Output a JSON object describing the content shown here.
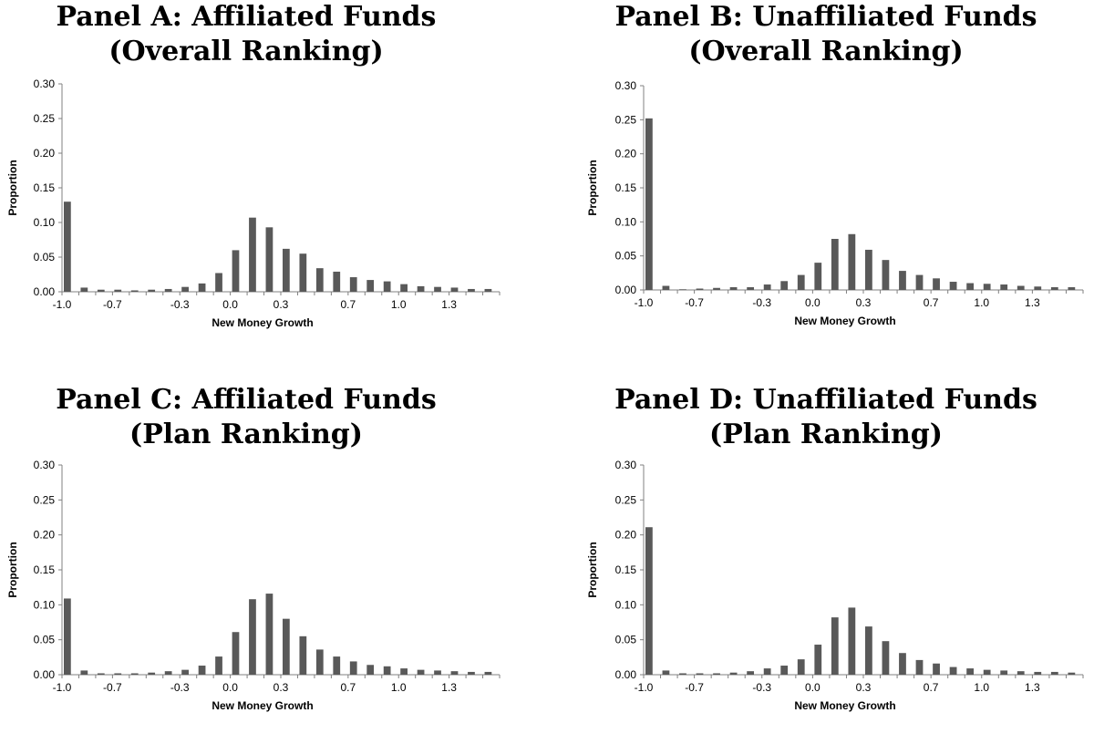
{
  "colors": {
    "bar": "#595959",
    "axis": "#808080"
  },
  "chart_data": [
    {
      "type": "bar",
      "title": "Panel A: Affiliated Funds",
      "subtitle": "(Overall Ranking)",
      "xlabel": "New Money Growth",
      "ylabel": "Proportion",
      "ylim": [
        0,
        0.3
      ],
      "yticks": [
        "0.00",
        "0.05",
        "0.10",
        "0.15",
        "0.20",
        "0.25",
        "0.30"
      ],
      "xticks": [
        {
          "x": -1.0,
          "label": "-1.0"
        },
        {
          "x": -0.7,
          "label": "-0.7"
        },
        {
          "x": -0.3,
          "label": "-0.3"
        },
        {
          "x": 0.0,
          "label": "0.0"
        },
        {
          "x": 0.3,
          "label": "0.3"
        },
        {
          "x": 0.7,
          "label": "0.7"
        },
        {
          "x": 1.0,
          "label": "1.0"
        },
        {
          "x": 1.3,
          "label": "1.3"
        }
      ],
      "xlim": [
        -1.0,
        1.6
      ],
      "x": [
        -1.0,
        -0.9,
        -0.8,
        -0.7,
        -0.6,
        -0.5,
        -0.4,
        -0.3,
        -0.2,
        -0.1,
        0.0,
        0.1,
        0.2,
        0.3,
        0.4,
        0.5,
        0.6,
        0.7,
        0.8,
        0.9,
        1.0,
        1.1,
        1.2,
        1.3,
        1.4,
        1.5
      ],
      "values": [
        0.13,
        0.006,
        0.003,
        0.003,
        0.002,
        0.003,
        0.004,
        0.007,
        0.012,
        0.027,
        0.06,
        0.107,
        0.093,
        0.062,
        0.055,
        0.034,
        0.029,
        0.021,
        0.017,
        0.015,
        0.011,
        0.008,
        0.007,
        0.006,
        0.004,
        0.004
      ]
    },
    {
      "type": "bar",
      "title": "Panel B: Unaffiliated Funds",
      "subtitle": "(Overall Ranking)",
      "xlabel": "New Money Growth",
      "ylabel": "Proportion",
      "ylim": [
        0,
        0.3
      ],
      "yticks": [
        "0.00",
        "0.05",
        "0.10",
        "0.15",
        "0.20",
        "0.25",
        "0.30"
      ],
      "xticks": [
        {
          "x": -1.0,
          "label": "-1.0"
        },
        {
          "x": -0.7,
          "label": "-0.7"
        },
        {
          "x": -0.3,
          "label": "-0.3"
        },
        {
          "x": 0.0,
          "label": "0.0"
        },
        {
          "x": 0.3,
          "label": "0.3"
        },
        {
          "x": 0.7,
          "label": "0.7"
        },
        {
          "x": 1.0,
          "label": "1.0"
        },
        {
          "x": 1.3,
          "label": "1.3"
        }
      ],
      "xlim": [
        -1.0,
        1.6
      ],
      "x": [
        -1.0,
        -0.9,
        -0.8,
        -0.7,
        -0.6,
        -0.5,
        -0.4,
        -0.3,
        -0.2,
        -0.1,
        0.0,
        0.1,
        0.2,
        0.3,
        0.4,
        0.5,
        0.6,
        0.7,
        0.8,
        0.9,
        1.0,
        1.1,
        1.2,
        1.3,
        1.4,
        1.5
      ],
      "values": [
        0.252,
        0.006,
        0.001,
        0.002,
        0.003,
        0.004,
        0.004,
        0.008,
        0.013,
        0.022,
        0.04,
        0.075,
        0.082,
        0.059,
        0.044,
        0.028,
        0.022,
        0.017,
        0.012,
        0.01,
        0.009,
        0.008,
        0.006,
        0.005,
        0.004,
        0.004
      ]
    },
    {
      "type": "bar",
      "title": "Panel C: Affiliated Funds",
      "subtitle": "(Plan Ranking)",
      "xlabel": "New Money Growth",
      "ylabel": "Proportion",
      "ylim": [
        0,
        0.3
      ],
      "yticks": [
        "0.00",
        "0.05",
        "0.10",
        "0.15",
        "0.20",
        "0.25",
        "0.30"
      ],
      "xticks": [
        {
          "x": -1.0,
          "label": "-1.0"
        },
        {
          "x": -0.7,
          "label": "-0.7"
        },
        {
          "x": -0.3,
          "label": "-0.3"
        },
        {
          "x": 0.0,
          "label": "0.0"
        },
        {
          "x": 0.3,
          "label": "0.3"
        },
        {
          "x": 0.7,
          "label": "0.7"
        },
        {
          "x": 1.0,
          "label": "1.0"
        },
        {
          "x": 1.3,
          "label": "1.3"
        }
      ],
      "xlim": [
        -1.0,
        1.6
      ],
      "x": [
        -1.0,
        -0.9,
        -0.8,
        -0.7,
        -0.6,
        -0.5,
        -0.4,
        -0.3,
        -0.2,
        -0.1,
        0.0,
        0.1,
        0.2,
        0.3,
        0.4,
        0.5,
        0.6,
        0.7,
        0.8,
        0.9,
        1.0,
        1.1,
        1.2,
        1.3,
        1.4,
        1.5
      ],
      "values": [
        0.109,
        0.006,
        0.002,
        0.002,
        0.002,
        0.003,
        0.005,
        0.007,
        0.013,
        0.026,
        0.061,
        0.108,
        0.116,
        0.08,
        0.055,
        0.036,
        0.026,
        0.019,
        0.014,
        0.012,
        0.009,
        0.007,
        0.006,
        0.005,
        0.004,
        0.004
      ]
    },
    {
      "type": "bar",
      "title": "Panel D: Unaffiliated Funds",
      "subtitle": "(Plan Ranking)",
      "xlabel": "New Money Growth",
      "ylabel": "Proportion",
      "ylim": [
        0,
        0.3
      ],
      "yticks": [
        "0.00",
        "0.05",
        "0.10",
        "0.15",
        "0.20",
        "0.25",
        "0.30"
      ],
      "xticks": [
        {
          "x": -1.0,
          "label": "-1.0"
        },
        {
          "x": -0.7,
          "label": "-0.7"
        },
        {
          "x": -0.3,
          "label": "-0.3"
        },
        {
          "x": 0.0,
          "label": "0.0"
        },
        {
          "x": 0.3,
          "label": "0.3"
        },
        {
          "x": 0.7,
          "label": "0.7"
        },
        {
          "x": 1.0,
          "label": "1.0"
        },
        {
          "x": 1.3,
          "label": "1.3"
        }
      ],
      "xlim": [
        -1.0,
        1.6
      ],
      "x": [
        -1.0,
        -0.9,
        -0.8,
        -0.7,
        -0.6,
        -0.5,
        -0.4,
        -0.3,
        -0.2,
        -0.1,
        0.0,
        0.1,
        0.2,
        0.3,
        0.4,
        0.5,
        0.6,
        0.7,
        0.8,
        0.9,
        1.0,
        1.1,
        1.2,
        1.3,
        1.4,
        1.5
      ],
      "values": [
        0.211,
        0.006,
        0.002,
        0.002,
        0.002,
        0.003,
        0.005,
        0.009,
        0.013,
        0.022,
        0.043,
        0.082,
        0.096,
        0.069,
        0.048,
        0.031,
        0.021,
        0.016,
        0.011,
        0.009,
        0.007,
        0.006,
        0.005,
        0.004,
        0.004,
        0.003
      ]
    }
  ]
}
